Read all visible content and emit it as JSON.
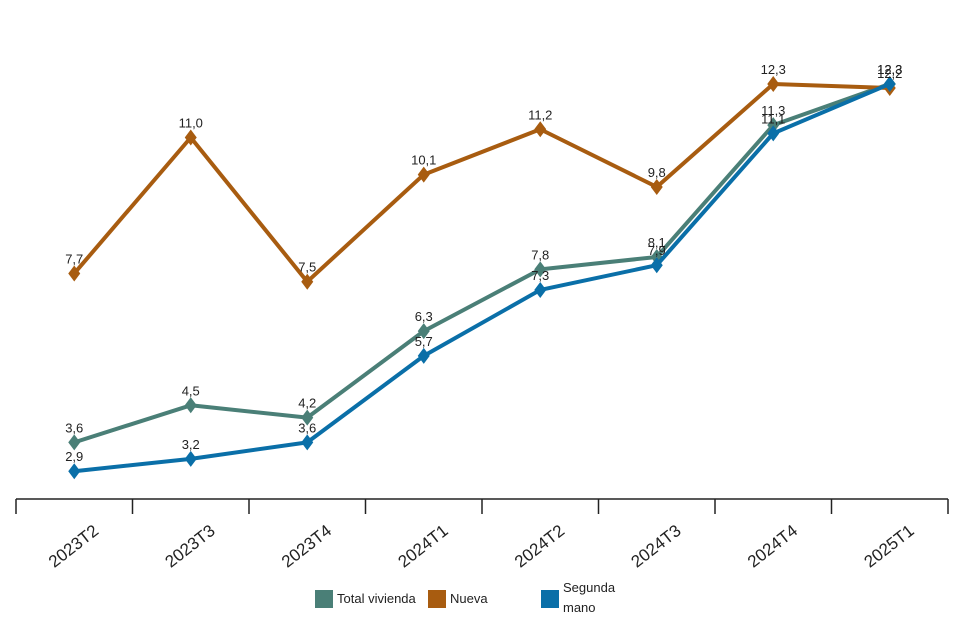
{
  "chart_data": {
    "type": "line",
    "categories": [
      "2023T2",
      "2023T3",
      "2023T4",
      "2024T1",
      "2024T2",
      "2024T3",
      "2024T4",
      "2025T1"
    ],
    "ylim": [
      0,
      14
    ],
    "grid": false,
    "legend_position": "bottom",
    "series": [
      {
        "name": "Total vivienda",
        "color": "#4a7f77",
        "values": [
          3.6,
          4.5,
          4.2,
          6.3,
          7.8,
          8.1,
          11.3,
          12.3
        ],
        "labels": [
          "3,6",
          "4,5",
          "4,2",
          "6,3",
          "7,8",
          "8,1",
          "11,3",
          "12,3"
        ]
      },
      {
        "name": "Nueva",
        "color": "#a85c10",
        "values": [
          7.7,
          11.0,
          7.5,
          10.1,
          11.2,
          9.8,
          12.3,
          12.2
        ],
        "labels": [
          "7,7",
          "11,0",
          "7,5",
          "10,1",
          "11,2",
          "9,8",
          "12,3",
          "12,2"
        ]
      },
      {
        "name": "Segunda mano",
        "color": "#0a6fa8",
        "values": [
          2.9,
          3.2,
          3.6,
          5.7,
          7.3,
          7.9,
          11.1,
          12.3
        ],
        "labels": [
          "2,9",
          "3,2",
          "3,6",
          "5,7",
          "7,3",
          "7,9",
          "11,1",
          "12,3"
        ]
      }
    ]
  },
  "legend": {
    "items": [
      {
        "label": "Total vivienda",
        "color": "#4a7f77"
      },
      {
        "label": "Nueva",
        "color": "#a85c10"
      },
      {
        "label": "Segunda\nmano",
        "color": "#0a6fa8"
      }
    ]
  }
}
